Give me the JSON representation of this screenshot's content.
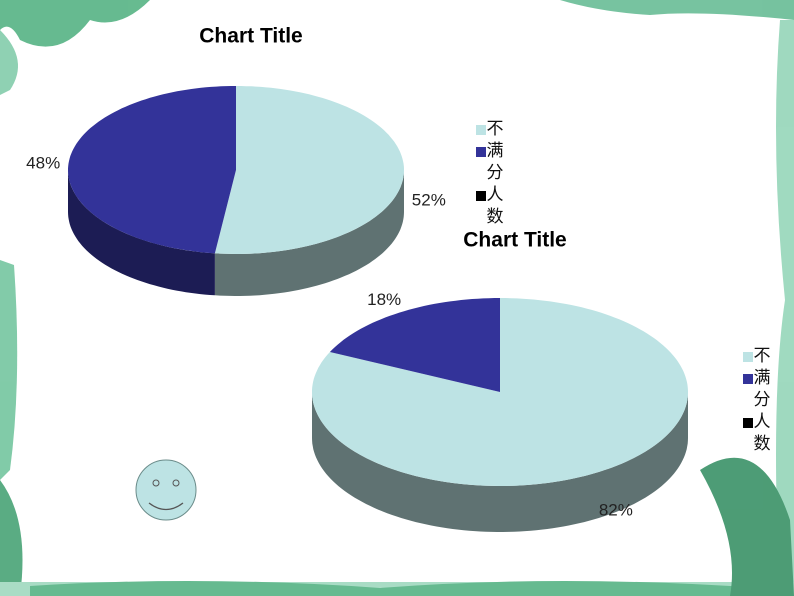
{
  "chart_data": [
    {
      "type": "pie3d",
      "title": "Chart Title",
      "categories": [
        "不",
        "满分",
        "人数"
      ],
      "values": [
        52,
        48,
        null
      ],
      "value_labels": [
        "52%",
        "48%",
        null
      ],
      "colors": [
        "#bde3e4",
        "#333399",
        "#000000"
      ]
    },
    {
      "type": "pie3d",
      "title": "Chart Title",
      "categories": [
        "不",
        "满分",
        "人数"
      ],
      "values": [
        82,
        18,
        null
      ],
      "value_labels": [
        "82%",
        "18%",
        null
      ],
      "colors": [
        "#bde3e4",
        "#333399",
        "#000000"
      ]
    }
  ]
}
